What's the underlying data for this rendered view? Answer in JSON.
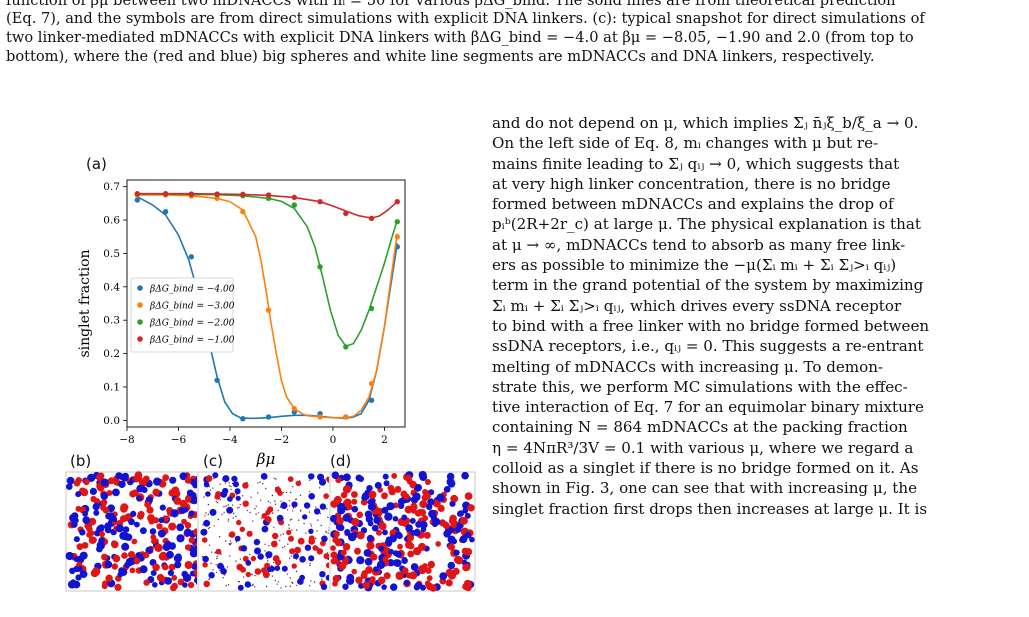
{
  "caption": {
    "lines": [
      "function of βμ between two mDNACCs with nᵢ = 50 for various βΔG_bind. The solid lines are from theoretical prediction",
      "(Eq. 7), and the symbols are from direct simulations with explicit DNA linkers. (c): typical snapshot for direct simulations of",
      "two linker-mediated mDNACCs with explicit DNA linkers with βΔG_bind = −4.0 at βμ = −8.05, −1.90 and 2.0 (from top to",
      "bottom), where the (red and blue) big spheres and white line segments are mDNACCs and DNA linkers, respectively."
    ]
  },
  "body_text": {
    "lines": [
      "and do not depend on μ, which implies Σⱼ n̄ⱼξ_b/ξ_a → 0.",
      "On the left side of Eq. 8, mᵢ changes with μ but re-",
      "mains finite leading to Σⱼ qᵢⱼ → 0, which suggests that",
      "at very high linker concentration, there is no bridge",
      "formed between mDNACCs and explains the drop of",
      "pᵢᵇ(2R+2r_c) at large μ. The physical explanation is that",
      "at μ → ∞, mDNACCs tend to absorb as many free link-",
      "ers as possible to minimize the −μ(Σᵢ mᵢ + Σᵢ Σⱼ>ᵢ qᵢⱼ)",
      "term in the grand potential of the system by maximizing",
      "Σᵢ mᵢ + Σᵢ Σⱼ>ᵢ qᵢⱼ, which drives every ssDNA receptor",
      "to bind with a free linker with no bridge formed between",
      "ssDNA receptors, i.e., qᵢⱼ = 0. This suggests a re-entrant",
      "melting of mDNACCs with increasing μ. To demon-",
      "strate this, we perform MC simulations with the effec-",
      "tive interaction of Eq. 7 for an equimolar binary mixture",
      "containing N = 864 mDNACCs at the packing fraction",
      "η = 4NπR³/3V = 0.1 with various μ, where we regard a",
      "colloid as a singlet if there is no bridge formed on it. As",
      "shown in Fig. 3, one can see that with increasing μ, the",
      "singlet fraction first drops then increases at large μ. It is"
    ]
  },
  "panel_labels": {
    "a": "(a)",
    "b": "(b)",
    "c": "(c)",
    "d": "(d)"
  },
  "chart_data": {
    "type": "line",
    "xlabel": "βμ",
    "ylabel": "singlet fraction",
    "xlim": [
      -8,
      2.8
    ],
    "ylim": [
      -0.02,
      0.72
    ],
    "xticks": [
      -8,
      -6,
      -4,
      -2,
      0,
      2
    ],
    "xtick_labels": [
      "−8",
      "−6",
      "−4",
      "−2",
      "0",
      "2"
    ],
    "yticks": [
      0.0,
      0.1,
      0.2,
      0.3,
      0.4,
      0.5,
      0.6,
      0.7
    ],
    "ytick_labels": [
      "0.0",
      "0.1",
      "0.2",
      "0.3",
      "0.4",
      "0.5",
      "0.6",
      "0.7"
    ],
    "legend_position": "center-left",
    "series": [
      {
        "name": "βΔG_bind = −4.00",
        "color": "#1f77b4",
        "line_x": [
          -7.6,
          -7,
          -6.5,
          -6,
          -5.6,
          -5.2,
          -4.8,
          -4.5,
          -4.2,
          -3.9,
          -3.6,
          -3.3,
          -3,
          -2.5,
          -2,
          -1.5,
          -1,
          -0.5,
          0,
          0.5,
          0.8,
          1.1,
          1.4,
          1.7,
          2,
          2.3,
          2.5
        ],
        "line_y": [
          0.67,
          0.645,
          0.615,
          0.555,
          0.48,
          0.37,
          0.23,
          0.13,
          0.055,
          0.02,
          0.008,
          0.006,
          0.006,
          0.008,
          0.012,
          0.015,
          0.015,
          0.012,
          0.008,
          0.006,
          0.01,
          0.02,
          0.06,
          0.15,
          0.28,
          0.43,
          0.53
        ],
        "points_x": [
          -7.6,
          -6.5,
          -5.5,
          -4.5,
          -3.5,
          -2.5,
          -1.5,
          -0.5,
          0.5,
          1.5,
          2.5
        ],
        "points_y": [
          0.66,
          0.625,
          0.49,
          0.12,
          0.005,
          0.01,
          0.025,
          0.02,
          0.01,
          0.06,
          0.52
        ]
      },
      {
        "name": "βΔG_bind = −3.00",
        "color": "#ff7f0e",
        "line_x": [
          -7.6,
          -6.5,
          -5.5,
          -4.5,
          -4,
          -3.5,
          -3,
          -2.8,
          -2.6,
          -2.4,
          -2.2,
          -2,
          -1.8,
          -1.5,
          -1.2,
          -1,
          -0.5,
          0,
          0.5,
          0.8,
          1.1,
          1.4,
          1.7,
          2,
          2.3,
          2.5
        ],
        "line_y": [
          0.675,
          0.675,
          0.673,
          0.665,
          0.655,
          0.63,
          0.55,
          0.48,
          0.39,
          0.29,
          0.2,
          0.12,
          0.07,
          0.035,
          0.02,
          0.014,
          0.01,
          0.008,
          0.008,
          0.012,
          0.03,
          0.07,
          0.15,
          0.28,
          0.45,
          0.56
        ],
        "points_x": [
          -7.6,
          -6.5,
          -5.5,
          -4.5,
          -3.5,
          -2.5,
          -1.5,
          -0.5,
          0.5,
          1.5,
          2.5
        ],
        "points_y": [
          0.675,
          0.675,
          0.672,
          0.665,
          0.625,
          0.33,
          0.035,
          0.01,
          0.01,
          0.11,
          0.55
        ]
      },
      {
        "name": "βΔG_bind = −2.00",
        "color": "#2ca02c",
        "line_x": [
          -7.6,
          -6.5,
          -5.5,
          -4.5,
          -3.5,
          -2.5,
          -2,
          -1.5,
          -1,
          -0.7,
          -0.4,
          -0.1,
          0.2,
          0.5,
          0.8,
          1.1,
          1.4,
          1.7,
          2,
          2.3,
          2.5
        ],
        "line_y": [
          0.678,
          0.678,
          0.677,
          0.676,
          0.673,
          0.665,
          0.656,
          0.635,
          0.58,
          0.52,
          0.43,
          0.33,
          0.255,
          0.222,
          0.23,
          0.27,
          0.33,
          0.4,
          0.47,
          0.55,
          0.6
        ],
        "points_x": [
          -7.6,
          -6.5,
          -5.5,
          -4.5,
          -3.5,
          -2.5,
          -1.5,
          -0.5,
          0.5,
          1.5,
          2.5
        ],
        "points_y": [
          0.678,
          0.678,
          0.677,
          0.676,
          0.673,
          0.665,
          0.645,
          0.46,
          0.22,
          0.335,
          0.595
        ]
      },
      {
        "name": "βΔG_bind = −1.00",
        "color": "#d62728",
        "line_x": [
          -7.6,
          -6.5,
          -5.5,
          -4.5,
          -3.5,
          -2.5,
          -1.5,
          -0.5,
          0,
          0.5,
          1,
          1.5,
          1.8,
          2.1,
          2.5
        ],
        "line_y": [
          0.679,
          0.679,
          0.679,
          0.678,
          0.677,
          0.674,
          0.668,
          0.655,
          0.642,
          0.627,
          0.613,
          0.606,
          0.612,
          0.628,
          0.655
        ],
        "points_x": [
          -7.6,
          -6.5,
          -5.5,
          -4.5,
          -3.5,
          -2.5,
          -1.5,
          -0.5,
          0.5,
          1.5,
          2.5
        ],
        "points_y": [
          0.679,
          0.679,
          0.678,
          0.678,
          0.677,
          0.675,
          0.668,
          0.655,
          0.62,
          0.605,
          0.655
        ]
      }
    ]
  }
}
